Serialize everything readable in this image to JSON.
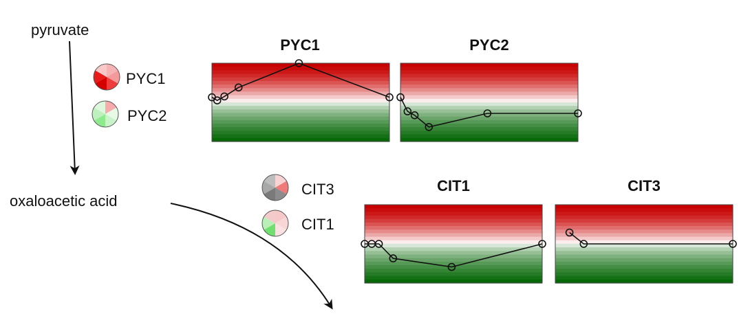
{
  "metabolites": {
    "pyruvate": "pyruvate",
    "oxaloacetic_acid": "oxaloacetic acid"
  },
  "legend_pyc": [
    {
      "name": "PYC1",
      "colors": [
        "#f6b3b3",
        "#f59a9a",
        "#ee3b3b",
        "#d40000",
        "#e81a1a",
        "#f9c9c9"
      ]
    },
    {
      "name": "PYC2",
      "colors": [
        "#f9aaaa",
        "#e6fae6",
        "#c9f3c9",
        "#8fe98f",
        "#bff1bf",
        "#ddf7dd"
      ]
    }
  ],
  "legend_cit": [
    {
      "name": "CIT3",
      "colors": [
        "#f8d3d3",
        "#f07a7a",
        "#8c8c8c",
        "#7a7a7a",
        "#a8a8a8",
        "#bdbdbd"
      ]
    },
    {
      "name": "CIT1",
      "colors": [
        "#f6c9c9",
        "#f8d6d6",
        "#fbe2e2",
        "#6fe06f",
        "#b8f0b8",
        "#f4caca"
      ]
    }
  ],
  "gradient": {
    "top": "#c80000",
    "middle": "#ffffff",
    "bottom": "#006400"
  },
  "chart_data": [
    {
      "type": "line",
      "title": "PYC1",
      "ylim": [
        -1,
        1
      ],
      "points": [
        [
          0.0,
          0.13
        ],
        [
          0.03,
          0.05
        ],
        [
          0.07,
          0.15
        ],
        [
          0.15,
          0.38
        ],
        [
          0.49,
          1.0
        ],
        [
          1.0,
          0.13
        ]
      ]
    },
    {
      "type": "line",
      "title": "PYC2",
      "ylim": [
        -1,
        1
      ],
      "points": [
        [
          0.0,
          0.13
        ],
        [
          0.04,
          -0.23
        ],
        [
          0.08,
          -0.33
        ],
        [
          0.16,
          -0.63
        ],
        [
          0.49,
          -0.28
        ],
        [
          1.0,
          -0.28
        ]
      ]
    },
    {
      "type": "line",
      "title": "CIT1",
      "ylim": [
        -1,
        1
      ],
      "points": [
        [
          0.0,
          0.0
        ],
        [
          0.04,
          0.0
        ],
        [
          0.08,
          0.0
        ],
        [
          0.16,
          -0.37
        ],
        [
          0.49,
          -0.59
        ],
        [
          1.0,
          0.0
        ]
      ]
    },
    {
      "type": "line",
      "title": "CIT3",
      "ylim": [
        -1,
        1
      ],
      "points": [
        [
          0.08,
          0.29
        ],
        [
          0.16,
          0.0
        ],
        [
          1.0,
          0.0
        ]
      ]
    }
  ]
}
